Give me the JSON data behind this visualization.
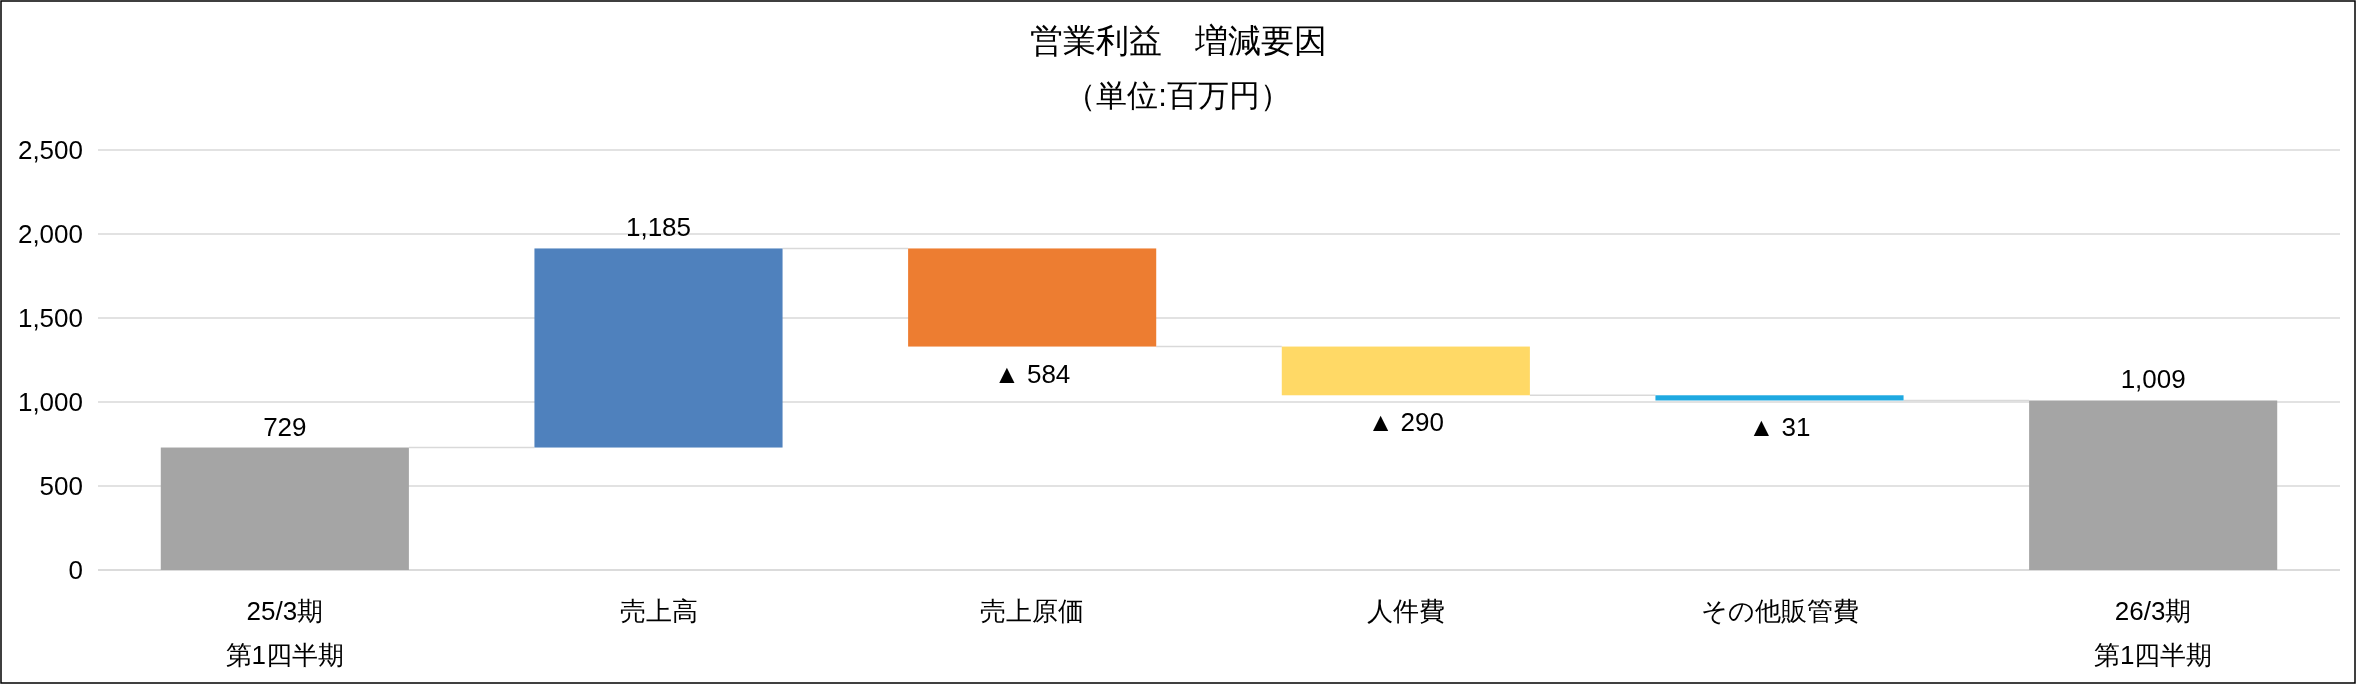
{
  "chart_data": {
    "type": "bar",
    "title": "営業利益　増減要因",
    "subtitle": "（単位:百万円）",
    "categories": [
      "25/3期第1四半期",
      "売上高",
      "売上原価",
      "人件費",
      "その他販管費",
      "26/3期第1四半期"
    ],
    "values": [
      729,
      1185,
      -584,
      -290,
      -31,
      1009
    ],
    "base": [
      0,
      729,
      1914,
      1330,
      1040,
      0
    ],
    "colors": [
      "#a5a5a5",
      "#4f81bd",
      "#ed7d31",
      "#ffd966",
      "#1fa9e1",
      "#a5a5a5"
    ],
    "value_labels": [
      "729",
      "1,185",
      "▲ 584",
      "▲ 290",
      "▲ 31",
      "1,009"
    ],
    "ylim": [
      0,
      2500
    ],
    "yticks": [
      {
        "value": 0,
        "label": "0"
      },
      {
        "value": 500,
        "label": "500"
      },
      {
        "value": 1000,
        "label": "1,000"
      },
      {
        "value": 1500,
        "label": "1,500"
      },
      {
        "value": 2000,
        "label": "2,000"
      },
      {
        "value": 2500,
        "label": "2,500"
      }
    ],
    "grid": "y"
  }
}
